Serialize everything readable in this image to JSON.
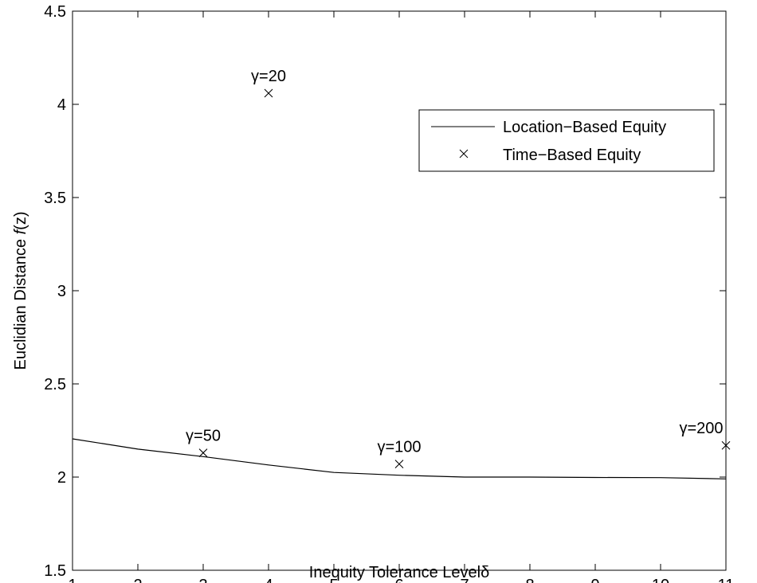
{
  "chart_data": {
    "type": "line",
    "xlabel": "Inequity Tolerance Levelδ",
    "ylabel_prefix": "Euclidian Distance ",
    "ylabel_func": "f",
    "ylabel_suffix": "(z)",
    "xlim": [
      1,
      11
    ],
    "ylim": [
      1.5,
      4.5
    ],
    "xticks": [
      1,
      2,
      3,
      4,
      5,
      6,
      7,
      8,
      9,
      10,
      11
    ],
    "yticks": [
      1.5,
      2,
      2.5,
      3,
      3.5,
      4,
      4.5
    ],
    "ytick_labels": [
      "1.5",
      "2",
      "2.5",
      "3",
      "3.5",
      "4",
      "4.5"
    ],
    "grid": false,
    "legend_position": "upper-right",
    "series": [
      {
        "name": "Location−Based Equity",
        "style": "line",
        "color": "#000000",
        "x": [
          1,
          2,
          3,
          4,
          5,
          6,
          7,
          8,
          9,
          10,
          11
        ],
        "y": [
          2.205,
          2.15,
          2.11,
          2.065,
          2.025,
          2.01,
          2.0,
          2.0,
          1.998,
          1.997,
          1.99
        ]
      },
      {
        "name": "Time−Based Equity",
        "style": "marker-x",
        "color": "#000000",
        "x": [
          3,
          4,
          6,
          11
        ],
        "y": [
          2.13,
          4.06,
          2.07,
          2.17
        ],
        "labels": [
          "γ=50",
          "γ=20",
          "γ=100",
          "γ=200"
        ]
      }
    ]
  }
}
